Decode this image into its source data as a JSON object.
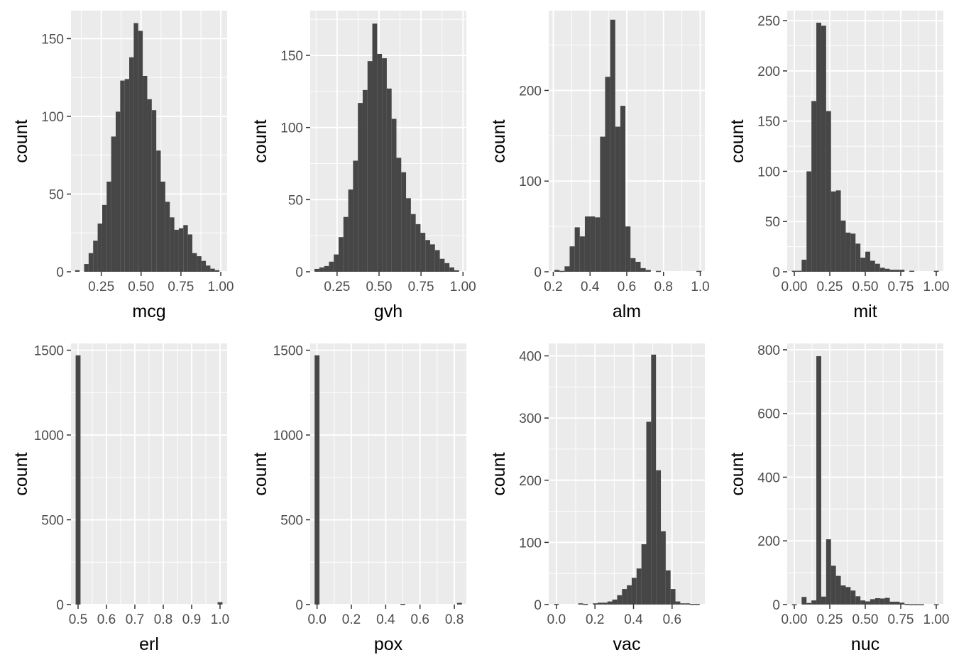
{
  "chart_data": [
    {
      "type": "bar",
      "xlabel": "mcg",
      "ylabel": "count",
      "xlim": [
        0.06,
        1.04
      ],
      "ylim": [
        0,
        168
      ],
      "xticks": [
        {
          "v": 0.25,
          "label": "0.25"
        },
        {
          "v": 0.5,
          "label": "0.50"
        },
        {
          "v": 0.75,
          "label": "0.75"
        },
        {
          "v": 1.0,
          "label": "1.00"
        }
      ],
      "yticks": [
        {
          "v": 0,
          "label": "0"
        },
        {
          "v": 50,
          "label": "50"
        },
        {
          "v": 100,
          "label": "100"
        },
        {
          "v": 150,
          "label": "150"
        }
      ],
      "binwidth": 0.0283,
      "bins": [
        {
          "x": 0.1,
          "count": 1
        },
        {
          "x": 0.1283,
          "count": 0
        },
        {
          "x": 0.1566,
          "count": 5
        },
        {
          "x": 0.1849,
          "count": 12
        },
        {
          "x": 0.2132,
          "count": 20
        },
        {
          "x": 0.2415,
          "count": 31
        },
        {
          "x": 0.2698,
          "count": 43
        },
        {
          "x": 0.2981,
          "count": 58
        },
        {
          "x": 0.3264,
          "count": 87
        },
        {
          "x": 0.3547,
          "count": 103
        },
        {
          "x": 0.383,
          "count": 123
        },
        {
          "x": 0.4113,
          "count": 124
        },
        {
          "x": 0.4396,
          "count": 138
        },
        {
          "x": 0.4679,
          "count": 160
        },
        {
          "x": 0.4962,
          "count": 155
        },
        {
          "x": 0.5245,
          "count": 126
        },
        {
          "x": 0.5528,
          "count": 111
        },
        {
          "x": 0.5811,
          "count": 104
        },
        {
          "x": 0.6094,
          "count": 78
        },
        {
          "x": 0.6377,
          "count": 58
        },
        {
          "x": 0.666,
          "count": 45
        },
        {
          "x": 0.6943,
          "count": 35
        },
        {
          "x": 0.7226,
          "count": 27
        },
        {
          "x": 0.7509,
          "count": 28
        },
        {
          "x": 0.7792,
          "count": 30
        },
        {
          "x": 0.8075,
          "count": 24
        },
        {
          "x": 0.8358,
          "count": 12
        },
        {
          "x": 0.8641,
          "count": 10
        },
        {
          "x": 0.8924,
          "count": 7
        },
        {
          "x": 0.9207,
          "count": 4
        },
        {
          "x": 0.949,
          "count": 2
        },
        {
          "x": 0.9773,
          "count": 1
        }
      ]
    },
    {
      "type": "bar",
      "xlabel": "gvh",
      "ylabel": "count",
      "xlim": [
        0.09,
        1.02
      ],
      "ylim": [
        0,
        181
      ],
      "xticks": [
        {
          "v": 0.25,
          "label": "0.25"
        },
        {
          "v": 0.5,
          "label": "0.50"
        },
        {
          "v": 0.75,
          "label": "0.75"
        },
        {
          "v": 1.0,
          "label": "1.00"
        }
      ],
      "yticks": [
        {
          "v": 0,
          "label": "0"
        },
        {
          "v": 50,
          "label": "50"
        },
        {
          "v": 100,
          "label": "100"
        },
        {
          "v": 150,
          "label": "150"
        }
      ],
      "binwidth": 0.0287,
      "bins": [
        {
          "x": 0.13,
          "count": 2
        },
        {
          "x": 0.1587,
          "count": 3
        },
        {
          "x": 0.1874,
          "count": 4
        },
        {
          "x": 0.2161,
          "count": 7
        },
        {
          "x": 0.2448,
          "count": 12
        },
        {
          "x": 0.2735,
          "count": 24
        },
        {
          "x": 0.3022,
          "count": 38
        },
        {
          "x": 0.3309,
          "count": 57
        },
        {
          "x": 0.3596,
          "count": 77
        },
        {
          "x": 0.3883,
          "count": 117
        },
        {
          "x": 0.417,
          "count": 126
        },
        {
          "x": 0.4457,
          "count": 146
        },
        {
          "x": 0.4744,
          "count": 172
        },
        {
          "x": 0.5031,
          "count": 151
        },
        {
          "x": 0.5318,
          "count": 148
        },
        {
          "x": 0.5605,
          "count": 127
        },
        {
          "x": 0.5892,
          "count": 106
        },
        {
          "x": 0.6179,
          "count": 79
        },
        {
          "x": 0.6466,
          "count": 69
        },
        {
          "x": 0.6753,
          "count": 51
        },
        {
          "x": 0.704,
          "count": 40
        },
        {
          "x": 0.7327,
          "count": 33
        },
        {
          "x": 0.7614,
          "count": 27
        },
        {
          "x": 0.7901,
          "count": 22
        },
        {
          "x": 0.8188,
          "count": 19
        },
        {
          "x": 0.8475,
          "count": 15
        },
        {
          "x": 0.8762,
          "count": 9
        },
        {
          "x": 0.9049,
          "count": 6
        },
        {
          "x": 0.9336,
          "count": 3
        },
        {
          "x": 0.9623,
          "count": 1
        }
      ]
    },
    {
      "type": "bar",
      "xlabel": "alm",
      "ylabel": "count",
      "xlim": [
        0.175,
        1.025
      ],
      "ylim": [
        0,
        288
      ],
      "xticks": [
        {
          "v": 0.2,
          "label": "0.2"
        },
        {
          "v": 0.4,
          "label": "0.4"
        },
        {
          "v": 0.6,
          "label": "0.6"
        },
        {
          "v": 0.8,
          "label": "0.8"
        },
        {
          "v": 1.0,
          "label": "1.0"
        }
      ],
      "yticks": [
        {
          "v": 0,
          "label": "0"
        },
        {
          "v": 100,
          "label": "100"
        },
        {
          "v": 200,
          "label": "200"
        }
      ],
      "binwidth": 0.0276,
      "bins": [
        {
          "x": 0.22,
          "count": 2
        },
        {
          "x": 0.2476,
          "count": 1
        },
        {
          "x": 0.2752,
          "count": 6
        },
        {
          "x": 0.3028,
          "count": 28
        },
        {
          "x": 0.3304,
          "count": 49
        },
        {
          "x": 0.358,
          "count": 39
        },
        {
          "x": 0.3856,
          "count": 61
        },
        {
          "x": 0.4132,
          "count": 61
        },
        {
          "x": 0.4408,
          "count": 60
        },
        {
          "x": 0.4684,
          "count": 149
        },
        {
          "x": 0.496,
          "count": 215
        },
        {
          "x": 0.5236,
          "count": 278
        },
        {
          "x": 0.5512,
          "count": 160
        },
        {
          "x": 0.5788,
          "count": 183
        },
        {
          "x": 0.6064,
          "count": 50
        },
        {
          "x": 0.634,
          "count": 15
        },
        {
          "x": 0.6616,
          "count": 11
        },
        {
          "x": 0.6892,
          "count": 4
        },
        {
          "x": 0.7168,
          "count": 2
        },
        {
          "x": 0.7444,
          "count": 0
        },
        {
          "x": 0.772,
          "count": 1
        },
        {
          "x": 0.7996,
          "count": 0
        },
        {
          "x": 0.8272,
          "count": 0
        },
        {
          "x": 0.8548,
          "count": 0
        },
        {
          "x": 0.8824,
          "count": 0
        },
        {
          "x": 0.91,
          "count": 0
        },
        {
          "x": 0.9376,
          "count": 0
        },
        {
          "x": 0.9652,
          "count": 0
        },
        {
          "x": 0.9928,
          "count": 1
        }
      ]
    },
    {
      "type": "bar",
      "xlabel": "mit",
      "ylabel": "count",
      "xlim": [
        -0.05,
        1.05
      ],
      "ylim": [
        0,
        260
      ],
      "xticks": [
        {
          "v": 0.0,
          "label": "0.00"
        },
        {
          "v": 0.25,
          "label": "0.25"
        },
        {
          "v": 0.5,
          "label": "0.50"
        },
        {
          "v": 0.75,
          "label": "0.75"
        },
        {
          "v": 1.0,
          "label": "1.00"
        }
      ],
      "yticks": [
        {
          "v": 0,
          "label": "0"
        },
        {
          "v": 50,
          "label": "50"
        },
        {
          "v": 100,
          "label": "100"
        },
        {
          "v": 150,
          "label": "150"
        },
        {
          "v": 200,
          "label": "200"
        },
        {
          "v": 250,
          "label": "250"
        }
      ],
      "binwidth": 0.0345,
      "bins": [
        {
          "x": 0.0,
          "count": 1
        },
        {
          "x": 0.0345,
          "count": 1
        },
        {
          "x": 0.069,
          "count": 12
        },
        {
          "x": 0.1035,
          "count": 100
        },
        {
          "x": 0.138,
          "count": 170
        },
        {
          "x": 0.1725,
          "count": 248
        },
        {
          "x": 0.207,
          "count": 245
        },
        {
          "x": 0.2415,
          "count": 160
        },
        {
          "x": 0.276,
          "count": 80
        },
        {
          "x": 0.3105,
          "count": 81
        },
        {
          "x": 0.345,
          "count": 51
        },
        {
          "x": 0.3795,
          "count": 39
        },
        {
          "x": 0.414,
          "count": 38
        },
        {
          "x": 0.4485,
          "count": 28
        },
        {
          "x": 0.483,
          "count": 14
        },
        {
          "x": 0.5175,
          "count": 20
        },
        {
          "x": 0.552,
          "count": 11
        },
        {
          "x": 0.5865,
          "count": 8
        },
        {
          "x": 0.621,
          "count": 4
        },
        {
          "x": 0.6555,
          "count": 3
        },
        {
          "x": 0.69,
          "count": 2
        },
        {
          "x": 0.7245,
          "count": 2
        },
        {
          "x": 0.759,
          "count": 2
        },
        {
          "x": 0.7935,
          "count": 0
        },
        {
          "x": 0.828,
          "count": 1
        },
        {
          "x": 0.8625,
          "count": 0
        },
        {
          "x": 0.897,
          "count": 0
        },
        {
          "x": 0.9315,
          "count": 0
        },
        {
          "x": 0.966,
          "count": 0
        },
        {
          "x": 1.0005,
          "count": 1
        }
      ]
    },
    {
      "type": "bar",
      "xlabel": "erl",
      "ylabel": "count",
      "xlim": [
        0.475,
        1.025
      ],
      "ylim": [
        0,
        1540
      ],
      "xticks": [
        {
          "v": 0.5,
          "label": "0.5"
        },
        {
          "v": 0.6,
          "label": "0.6"
        },
        {
          "v": 0.7,
          "label": "0.7"
        },
        {
          "v": 0.8,
          "label": "0.8"
        },
        {
          "v": 0.9,
          "label": "0.9"
        },
        {
          "v": 1.0,
          "label": "1.0"
        }
      ],
      "yticks": [
        {
          "v": 0,
          "label": "0"
        },
        {
          "v": 500,
          "label": "500"
        },
        {
          "v": 1000,
          "label": "1000"
        },
        {
          "v": 1500,
          "label": "1500"
        }
      ],
      "binwidth": 0.0172,
      "bins": [
        {
          "x": 0.5,
          "count": 1470
        },
        {
          "x": 1.0,
          "count": 14
        }
      ]
    },
    {
      "type": "bar",
      "xlabel": "pox",
      "ylabel": "count",
      "xlim": [
        -0.04,
        0.87
      ],
      "ylim": [
        0,
        1540
      ],
      "xticks": [
        {
          "v": 0.0,
          "label": "0.0"
        },
        {
          "v": 0.2,
          "label": "0.2"
        },
        {
          "v": 0.4,
          "label": "0.4"
        },
        {
          "v": 0.6,
          "label": "0.6"
        },
        {
          "v": 0.8,
          "label": "0.8"
        }
      ],
      "yticks": [
        {
          "v": 0,
          "label": "0"
        },
        {
          "v": 500,
          "label": "500"
        },
        {
          "v": 1000,
          "label": "1000"
        },
        {
          "v": 1500,
          "label": "1500"
        }
      ],
      "binwidth": 0.0283,
      "bins": [
        {
          "x": 0.0,
          "count": 1470
        },
        {
          "x": 0.5,
          "count": 4
        },
        {
          "x": 0.83,
          "count": 10
        }
      ]
    },
    {
      "type": "bar",
      "xlabel": "vac",
      "ylabel": "count",
      "xlim": [
        -0.04,
        0.77
      ],
      "ylim": [
        0,
        420
      ],
      "xticks": [
        {
          "v": 0.0,
          "label": "0.0"
        },
        {
          "v": 0.2,
          "label": "0.2"
        },
        {
          "v": 0.4,
          "label": "0.4"
        },
        {
          "v": 0.6,
          "label": "0.6"
        }
      ],
      "yticks": [
        {
          "v": 0,
          "label": "0"
        },
        {
          "v": 100,
          "label": "100"
        },
        {
          "v": 200,
          "label": "200"
        },
        {
          "v": 300,
          "label": "300"
        },
        {
          "v": 400,
          "label": "400"
        }
      ],
      "binwidth": 0.0252,
      "bins": [
        {
          "x": 0.0,
          "count": 1
        },
        {
          "x": 0.0252,
          "count": 0
        },
        {
          "x": 0.0504,
          "count": 0
        },
        {
          "x": 0.0756,
          "count": 0
        },
        {
          "x": 0.1008,
          "count": 0
        },
        {
          "x": 0.126,
          "count": 2
        },
        {
          "x": 0.1512,
          "count": 1
        },
        {
          "x": 0.1764,
          "count": 0
        },
        {
          "x": 0.2016,
          "count": 2
        },
        {
          "x": 0.2268,
          "count": 3
        },
        {
          "x": 0.252,
          "count": 3
        },
        {
          "x": 0.2772,
          "count": 5
        },
        {
          "x": 0.3024,
          "count": 8
        },
        {
          "x": 0.3276,
          "count": 15
        },
        {
          "x": 0.3528,
          "count": 25
        },
        {
          "x": 0.378,
          "count": 31
        },
        {
          "x": 0.4032,
          "count": 43
        },
        {
          "x": 0.4284,
          "count": 58
        },
        {
          "x": 0.4536,
          "count": 97
        },
        {
          "x": 0.4788,
          "count": 294
        },
        {
          "x": 0.504,
          "count": 402
        },
        {
          "x": 0.5292,
          "count": 216
        },
        {
          "x": 0.5544,
          "count": 118
        },
        {
          "x": 0.5796,
          "count": 55
        },
        {
          "x": 0.6048,
          "count": 25
        },
        {
          "x": 0.63,
          "count": 5
        },
        {
          "x": 0.6552,
          "count": 2
        },
        {
          "x": 0.6804,
          "count": 2
        },
        {
          "x": 0.7056,
          "count": 1
        },
        {
          "x": 0.7308,
          "count": 1
        }
      ]
    },
    {
      "type": "bar",
      "xlabel": "nuc",
      "ylabel": "count",
      "xlim": [
        -0.05,
        1.05
      ],
      "ylim": [
        0,
        820
      ],
      "xticks": [
        {
          "v": 0.0,
          "label": "0.00"
        },
        {
          "v": 0.25,
          "label": "0.25"
        },
        {
          "v": 0.5,
          "label": "0.50"
        },
        {
          "v": 0.75,
          "label": "0.75"
        },
        {
          "v": 1.0,
          "label": "1.00"
        }
      ],
      "yticks": [
        {
          "v": 0,
          "label": "0"
        },
        {
          "v": 200,
          "label": "200"
        },
        {
          "v": 400,
          "label": "400"
        },
        {
          "v": 600,
          "label": "600"
        },
        {
          "v": 800,
          "label": "800"
        }
      ],
      "binwidth": 0.0345,
      "bins": [
        {
          "x": 0.0,
          "count": 1
        },
        {
          "x": 0.0345,
          "count": 0
        },
        {
          "x": 0.069,
          "count": 24
        },
        {
          "x": 0.1035,
          "count": 5
        },
        {
          "x": 0.138,
          "count": 13
        },
        {
          "x": 0.1725,
          "count": 780
        },
        {
          "x": 0.207,
          "count": 25
        },
        {
          "x": 0.2415,
          "count": 205
        },
        {
          "x": 0.276,
          "count": 122
        },
        {
          "x": 0.3105,
          "count": 90
        },
        {
          "x": 0.345,
          "count": 60
        },
        {
          "x": 0.3795,
          "count": 55
        },
        {
          "x": 0.414,
          "count": 44
        },
        {
          "x": 0.4485,
          "count": 26
        },
        {
          "x": 0.483,
          "count": 13
        },
        {
          "x": 0.5175,
          "count": 10
        },
        {
          "x": 0.552,
          "count": 17
        },
        {
          "x": 0.5865,
          "count": 20
        },
        {
          "x": 0.621,
          "count": 19
        },
        {
          "x": 0.6555,
          "count": 21
        },
        {
          "x": 0.69,
          "count": 9
        },
        {
          "x": 0.7245,
          "count": 9
        },
        {
          "x": 0.759,
          "count": 6
        },
        {
          "x": 0.7935,
          "count": 2
        },
        {
          "x": 0.828,
          "count": 1
        },
        {
          "x": 0.8625,
          "count": 1
        },
        {
          "x": 0.897,
          "count": 1
        },
        {
          "x": 0.9315,
          "count": 0
        },
        {
          "x": 0.966,
          "count": 0
        },
        {
          "x": 1.0005,
          "count": 1
        }
      ]
    }
  ],
  "style": {
    "panel_background": "#ebebeb",
    "grid_color": "#ffffff",
    "bar_color": "#464646",
    "tick_color": "#333333",
    "tick_label_color": "#4d4d4d",
    "title_color": "#000000"
  }
}
